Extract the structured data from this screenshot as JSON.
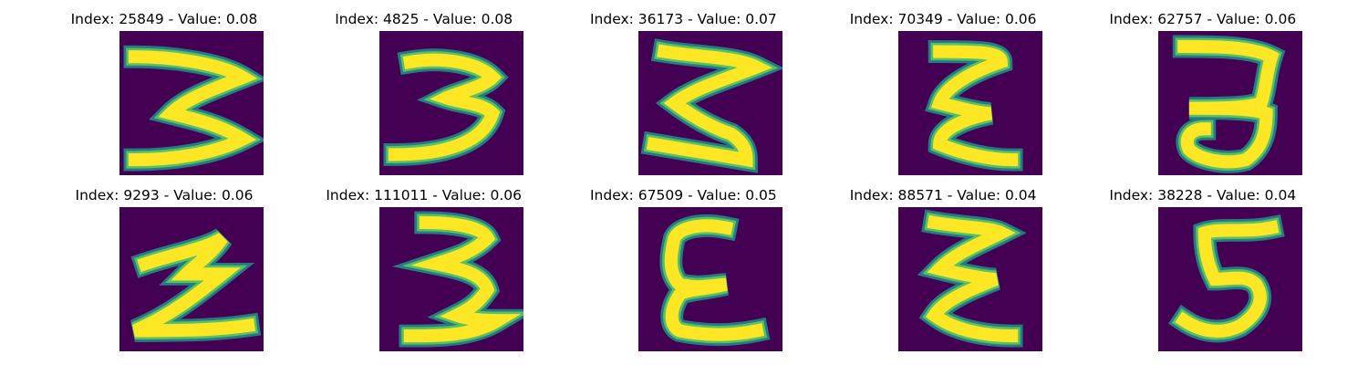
{
  "colors": {
    "background": "#440154",
    "stroke_edge": "#21918c",
    "stroke_mid": "#5ec962",
    "stroke_core": "#fde725"
  },
  "panels": [
    {
      "title": "Index: 25849 - Value: 0.08",
      "glyph": "3"
    },
    {
      "title": "Index: 4825 - Value: 0.08",
      "glyph": "3"
    },
    {
      "title": "Index: 36173 - Value: 0.07",
      "glyph": "3"
    },
    {
      "title": "Index: 70349 - Value: 0.06",
      "glyph": "3"
    },
    {
      "title": "Index: 62757 - Value: 0.06",
      "glyph": "3"
    },
    {
      "title": "Index: 9293 - Value: 0.06",
      "glyph": "3"
    },
    {
      "title": "Index: 111011 - Value: 0.06",
      "glyph": "3"
    },
    {
      "title": "Index: 67509 - Value: 0.05",
      "glyph": "3"
    },
    {
      "title": "Index: 88571 - Value: 0.04",
      "glyph": "3"
    },
    {
      "title": "Index: 38228 - Value: 0.04",
      "glyph": "5"
    }
  ]
}
